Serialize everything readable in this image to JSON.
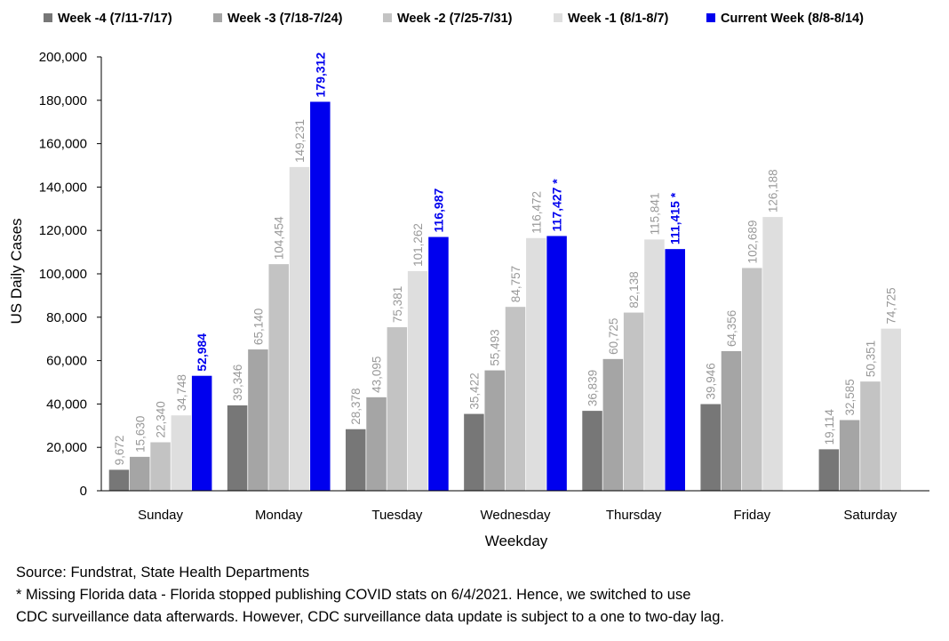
{
  "chart_data": {
    "type": "bar",
    "categories": [
      "Sunday",
      "Monday",
      "Tuesday",
      "Wednesday",
      "Thursday",
      "Friday",
      "Saturday"
    ],
    "series": [
      {
        "name": "Week -4 (7/11-7/17)",
        "color": "#777777",
        "values": [
          9672,
          39346,
          28378,
          35422,
          36839,
          39946,
          19114
        ],
        "labels": [
          "9,672",
          "39,346",
          "28,378",
          "35,422",
          "36,839",
          "39,946",
          "19,114"
        ]
      },
      {
        "name": "Week -3 (7/18-7/24)",
        "color": "#a5a5a5",
        "values": [
          15630,
          65140,
          43095,
          55493,
          60725,
          64356,
          32585
        ],
        "labels": [
          "15,630",
          "65,140",
          "43,095",
          "55,493",
          "60,725",
          "64,356",
          "32,585"
        ]
      },
      {
        "name": "Week -2 (7/25-7/31)",
        "color": "#c3c3c3",
        "values": [
          22340,
          104454,
          75381,
          84757,
          82138,
          102689,
          50351
        ],
        "labels": [
          "22,340",
          "104,454",
          "75,381",
          "84,757",
          "82,138",
          "102,689",
          "50,351"
        ]
      },
      {
        "name": "Week -1 (8/1-8/7)",
        "color": "#dedede",
        "values": [
          34748,
          149231,
          101262,
          116472,
          115841,
          126188,
          74725
        ],
        "labels": [
          "34,748",
          "149,231",
          "101,262",
          "116,472",
          "115,841",
          "126,188",
          "74,725"
        ]
      },
      {
        "name": "Current Week (8/8-8/14)",
        "color": "#0000ee",
        "values": [
          52984,
          179312,
          116987,
          117427,
          111415,
          null,
          null
        ],
        "labels": [
          "52,984",
          "179,312",
          "116,987",
          "117,427 *",
          "111,415 *",
          "",
          ""
        ]
      }
    ],
    "xlabel": "Weekday",
    "ylabel": "US Daily Cases",
    "ylim": [
      0,
      200000
    ],
    "yticks": [
      "0",
      "20,000",
      "40,000",
      "60,000",
      "80,000",
      "100,000",
      "120,000",
      "140,000",
      "160,000",
      "180,000",
      "200,000"
    ],
    "grid": false,
    "legend_position": "top"
  },
  "notes": {
    "source": "Source: Fundstrat, State Health Departments",
    "footnote_line1": "* Missing Florida data - Florida stopped publishing COVID stats on 6/4/2021. Hence, we switched to use",
    "footnote_line2": "CDC surveillance data afterwards. However, CDC surveillance data update is subject to a one to two-day lag."
  }
}
